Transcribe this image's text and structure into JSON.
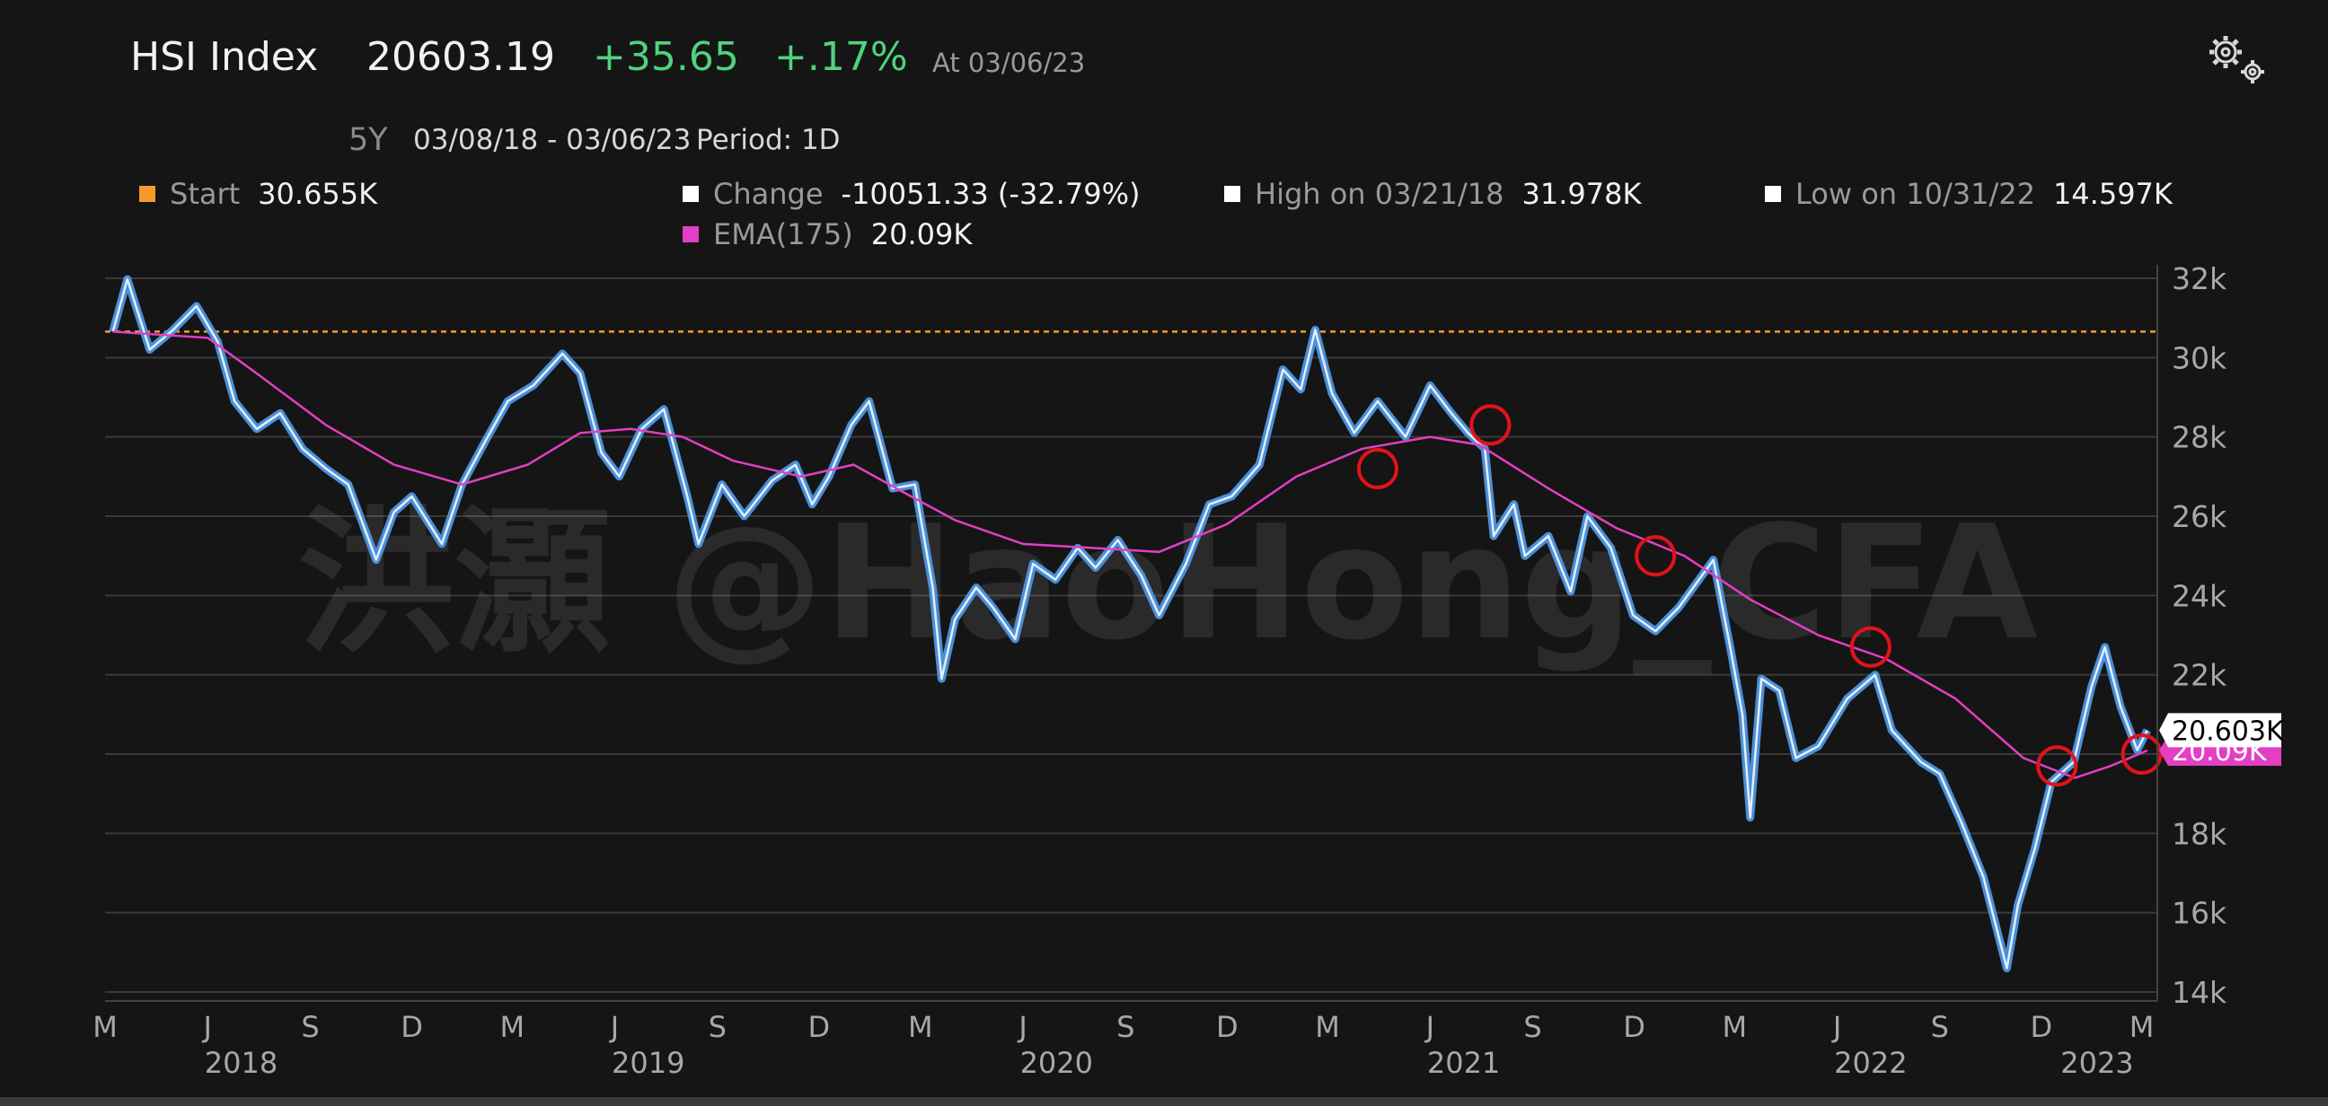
{
  "header": {
    "title": "HSI Index",
    "price": "20603.19",
    "change": "+35.65",
    "change_pct": "+.17%",
    "as_of": "At 03/06/23"
  },
  "controls": {
    "range": "5Y",
    "dates": "03/08/18 - 03/06/23",
    "period": "Period: 1D",
    "settings_icon": "gears-icon"
  },
  "legend": {
    "start": {
      "label": "Start",
      "value": "30.655K",
      "color": "#f59a2c"
    },
    "change": {
      "label": "Change",
      "value": "-10051.33 (-32.79%)",
      "color": "#ffffff"
    },
    "high": {
      "label": "High on 03/21/18",
      "value": "31.978K",
      "color": "#ffffff"
    },
    "low": {
      "label": "Low on 10/31/22",
      "value": "14.597K",
      "color": "#ffffff"
    },
    "ema": {
      "label": "EMA(175)",
      "value": "20.09K",
      "color": "#e23fc4"
    }
  },
  "watermark": "洪灝 @HaoHong_CFA",
  "chart_data": {
    "type": "line",
    "x_unit": "date",
    "ylim": [
      14000,
      32000
    ],
    "y_ticks": [
      14000,
      16000,
      18000,
      20000,
      22000,
      24000,
      26000,
      28000,
      30000,
      32000
    ],
    "y_tick_labels": [
      "14k",
      "16k",
      "18k",
      "20k",
      "22k",
      "24k",
      "26k",
      "28k",
      "30k",
      "32k"
    ],
    "x_month_labels": [
      "M",
      "J",
      "S",
      "D",
      "M",
      "J",
      "S",
      "D",
      "M",
      "J",
      "S",
      "D",
      "M",
      "J",
      "S",
      "D",
      "M",
      "J",
      "S",
      "D",
      "M"
    ],
    "x_year_labels": [
      "2018",
      "2019",
      "2020",
      "2021",
      "2022",
      "2023"
    ],
    "start_level": 30655,
    "last_price_label": "20.603K",
    "ema_label": "20.09K",
    "colors": {
      "price": "#4a8fd8",
      "price_light": "#ffffff",
      "ema": "#e23fc4",
      "start": "#f59a2c",
      "marker": "#e3121b"
    },
    "series": [
      {
        "name": "HSI Index",
        "points": [
          [
            "2018-03-08",
            30655
          ],
          [
            "2018-03-21",
            31978
          ],
          [
            "2018-04-10",
            30200
          ],
          [
            "2018-05-01",
            30700
          ],
          [
            "2018-05-22",
            31300
          ],
          [
            "2018-06-10",
            30400
          ],
          [
            "2018-06-25",
            28900
          ],
          [
            "2018-07-15",
            28200
          ],
          [
            "2018-08-05",
            28600
          ],
          [
            "2018-08-25",
            27700
          ],
          [
            "2018-09-15",
            27200
          ],
          [
            "2018-10-05",
            26800
          ],
          [
            "2018-10-30",
            24900
          ],
          [
            "2018-11-15",
            26100
          ],
          [
            "2018-12-01",
            26500
          ],
          [
            "2018-12-28",
            25300
          ],
          [
            "2019-01-15",
            26800
          ],
          [
            "2019-02-05",
            27900
          ],
          [
            "2019-02-25",
            28900
          ],
          [
            "2019-03-20",
            29300
          ],
          [
            "2019-04-15",
            30100
          ],
          [
            "2019-05-01",
            29600
          ],
          [
            "2019-05-20",
            27600
          ],
          [
            "2019-06-05",
            27000
          ],
          [
            "2019-06-25",
            28200
          ],
          [
            "2019-07-15",
            28700
          ],
          [
            "2019-08-05",
            26500
          ],
          [
            "2019-08-15",
            25300
          ],
          [
            "2019-09-05",
            26800
          ],
          [
            "2019-09-25",
            26000
          ],
          [
            "2019-10-20",
            26900
          ],
          [
            "2019-11-10",
            27300
          ],
          [
            "2019-11-25",
            26300
          ],
          [
            "2019-12-10",
            27000
          ],
          [
            "2019-12-30",
            28300
          ],
          [
            "2020-01-15",
            28900
          ],
          [
            "2020-02-05",
            26700
          ],
          [
            "2020-02-25",
            26800
          ],
          [
            "2020-03-12",
            24200
          ],
          [
            "2020-03-20",
            21900
          ],
          [
            "2020-04-01",
            23400
          ],
          [
            "2020-04-20",
            24200
          ],
          [
            "2020-05-05",
            23700
          ],
          [
            "2020-05-25",
            22900
          ],
          [
            "2020-06-10",
            24800
          ],
          [
            "2020-06-30",
            24400
          ],
          [
            "2020-07-20",
            25200
          ],
          [
            "2020-08-05",
            24700
          ],
          [
            "2020-08-25",
            25400
          ],
          [
            "2020-09-15",
            24500
          ],
          [
            "2020-10-01",
            23500
          ],
          [
            "2020-10-25",
            24800
          ],
          [
            "2020-11-15",
            26300
          ],
          [
            "2020-12-05",
            26500
          ],
          [
            "2020-12-30",
            27300
          ],
          [
            "2021-01-20",
            29700
          ],
          [
            "2021-02-05",
            29200
          ],
          [
            "2021-02-18",
            30700
          ],
          [
            "2021-03-05",
            29100
          ],
          [
            "2021-03-25",
            28100
          ],
          [
            "2021-04-15",
            28900
          ],
          [
            "2021-05-10",
            28000
          ],
          [
            "2021-06-01",
            29300
          ],
          [
            "2021-06-20",
            28600
          ],
          [
            "2021-07-05",
            28100
          ],
          [
            "2021-07-20",
            27700
          ],
          [
            "2021-07-28",
            25500
          ],
          [
            "2021-08-15",
            26300
          ],
          [
            "2021-08-25",
            25000
          ],
          [
            "2021-09-15",
            25500
          ],
          [
            "2021-10-05",
            24100
          ],
          [
            "2021-10-20",
            26000
          ],
          [
            "2021-11-10",
            25200
          ],
          [
            "2021-11-30",
            23500
          ],
          [
            "2021-12-20",
            23100
          ],
          [
            "2022-01-10",
            23700
          ],
          [
            "2022-02-10",
            24900
          ],
          [
            "2022-02-25",
            22700
          ],
          [
            "2022-03-08",
            21000
          ],
          [
            "2022-03-15",
            18400
          ],
          [
            "2022-03-25",
            21900
          ],
          [
            "2022-04-10",
            21600
          ],
          [
            "2022-04-25",
            19900
          ],
          [
            "2022-05-15",
            20200
          ],
          [
            "2022-06-10",
            21400
          ],
          [
            "2022-07-05",
            22000
          ],
          [
            "2022-07-20",
            20600
          ],
          [
            "2022-08-15",
            19800
          ],
          [
            "2022-09-01",
            19500
          ],
          [
            "2022-09-20",
            18300
          ],
          [
            "2022-10-10",
            16900
          ],
          [
            "2022-10-31",
            14597
          ],
          [
            "2022-11-10",
            16200
          ],
          [
            "2022-11-25",
            17600
          ],
          [
            "2022-12-10",
            19300
          ],
          [
            "2022-12-30",
            19800
          ],
          [
            "2023-01-15",
            21700
          ],
          [
            "2023-01-27",
            22700
          ],
          [
            "2023-02-10",
            21200
          ],
          [
            "2023-02-25",
            20100
          ],
          [
            "2023-03-06",
            20603
          ]
        ]
      },
      {
        "name": "EMA(175)",
        "points": [
          [
            "2018-03-08",
            30655
          ],
          [
            "2018-06-01",
            30500
          ],
          [
            "2018-07-15",
            29600
          ],
          [
            "2018-09-15",
            28300
          ],
          [
            "2018-11-15",
            27300
          ],
          [
            "2019-01-15",
            26800
          ],
          [
            "2019-03-15",
            27300
          ],
          [
            "2019-05-01",
            28100
          ],
          [
            "2019-06-15",
            28200
          ],
          [
            "2019-08-01",
            28000
          ],
          [
            "2019-09-15",
            27400
          ],
          [
            "2019-11-15",
            27000
          ],
          [
            "2020-01-01",
            27300
          ],
          [
            "2020-02-15",
            26600
          ],
          [
            "2020-04-01",
            25900
          ],
          [
            "2020-06-01",
            25300
          ],
          [
            "2020-08-01",
            25200
          ],
          [
            "2020-10-01",
            25100
          ],
          [
            "2020-12-01",
            25800
          ],
          [
            "2021-02-01",
            27000
          ],
          [
            "2021-04-01",
            27700
          ],
          [
            "2021-06-01",
            28000
          ],
          [
            "2021-07-15",
            27800
          ],
          [
            "2021-09-15",
            26700
          ],
          [
            "2021-11-15",
            25700
          ],
          [
            "2022-01-15",
            25000
          ],
          [
            "2022-03-15",
            23900
          ],
          [
            "2022-05-15",
            23000
          ],
          [
            "2022-07-15",
            22400
          ],
          [
            "2022-09-15",
            21400
          ],
          [
            "2022-11-15",
            19900
          ],
          [
            "2022-12-31",
            19400
          ],
          [
            "2023-02-01",
            19700
          ],
          [
            "2023-03-06",
            20090
          ]
        ]
      }
    ],
    "annotations": {
      "circled_crossovers": [
        "2021-04-15",
        "2021-07-25",
        "2021-12-20",
        "2022-07-01",
        "2022-12-15",
        "2023-03-01"
      ],
      "circled_values": [
        27200,
        28300,
        25000,
        22700,
        19700,
        20000
      ]
    }
  }
}
